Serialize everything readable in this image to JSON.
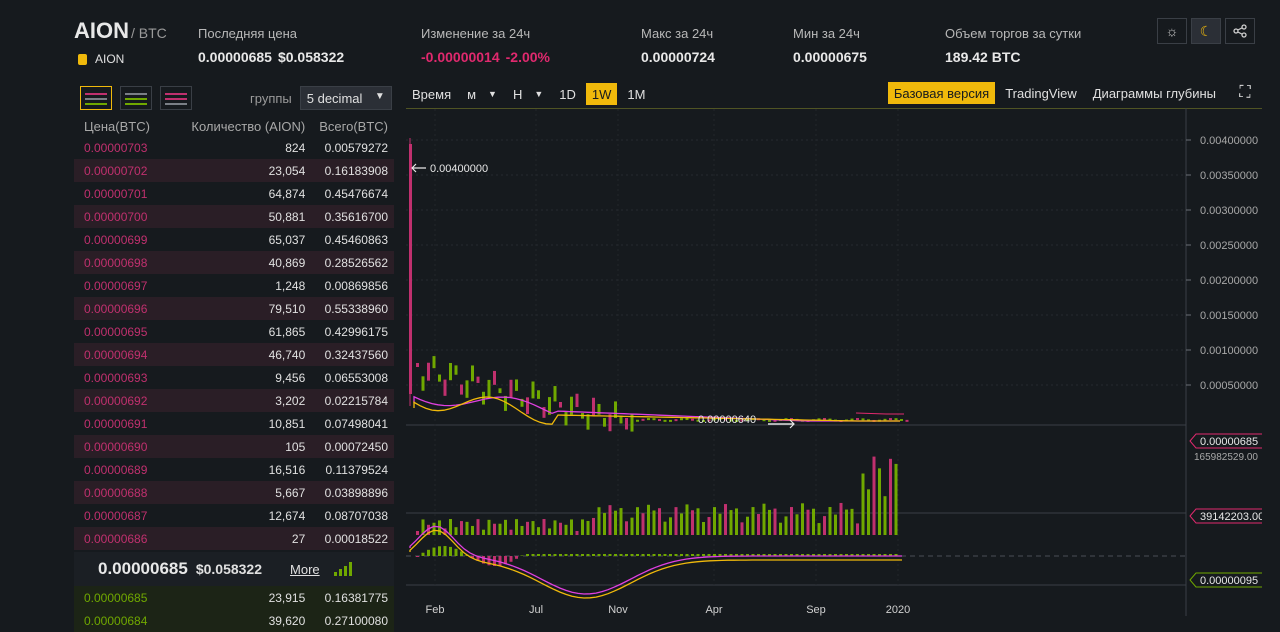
{
  "header": {
    "pair": "AION",
    "quote": "/ BTC",
    "sub_name": "AION",
    "stats": {
      "last_price": {
        "label": "Последняя цена",
        "value": "0.00000685",
        "usd": "$0.058322"
      },
      "change": {
        "label": "Изменение за 24ч",
        "value": "-0.00000014",
        "pct": "-2.00%"
      },
      "high": {
        "label": "Макс за 24ч",
        "value": "0.00000724"
      },
      "low": {
        "label": "Мин за 24ч",
        "value": "0.00000675"
      },
      "volume": {
        "label": "Объем торгов за сутки",
        "value": "189.42 BTC"
      }
    },
    "icons": [
      "sun-icon",
      "moon-icon",
      "share-icon"
    ]
  },
  "orderbook": {
    "group_label": "группы",
    "group_value": "5 decimal",
    "columns": [
      "Цена(BTC)",
      "Количество (AION)",
      "Всего(BTC)"
    ],
    "asks": [
      {
        "price": "0.00000703",
        "qty": "824",
        "total": "0.00579272"
      },
      {
        "price": "0.00000702",
        "qty": "23,054",
        "total": "0.16183908"
      },
      {
        "price": "0.00000701",
        "qty": "64,874",
        "total": "0.45476674"
      },
      {
        "price": "0.00000700",
        "qty": "50,881",
        "total": "0.35616700"
      },
      {
        "price": "0.00000699",
        "qty": "65,037",
        "total": "0.45460863"
      },
      {
        "price": "0.00000698",
        "qty": "40,869",
        "total": "0.28526562"
      },
      {
        "price": "0.00000697",
        "qty": "1,248",
        "total": "0.00869856"
      },
      {
        "price": "0.00000696",
        "qty": "79,510",
        "total": "0.55338960"
      },
      {
        "price": "0.00000695",
        "qty": "61,865",
        "total": "0.42996175"
      },
      {
        "price": "0.00000694",
        "qty": "46,740",
        "total": "0.32437560"
      },
      {
        "price": "0.00000693",
        "qty": "9,456",
        "total": "0.06553008"
      },
      {
        "price": "0.00000692",
        "qty": "3,202",
        "total": "0.02215784"
      },
      {
        "price": "0.00000691",
        "qty": "10,851",
        "total": "0.07498041"
      },
      {
        "price": "0.00000690",
        "qty": "105",
        "total": "0.00072450"
      },
      {
        "price": "0.00000689",
        "qty": "16,516",
        "total": "0.11379524"
      },
      {
        "price": "0.00000688",
        "qty": "5,667",
        "total": "0.03898896"
      },
      {
        "price": "0.00000687",
        "qty": "12,674",
        "total": "0.08707038"
      },
      {
        "price": "0.00000686",
        "qty": "27",
        "total": "0.00018522"
      }
    ],
    "last_price": "0.00000685",
    "last_usd": "$0.058322",
    "more": "More",
    "bids": [
      {
        "price": "0.00000685",
        "qty": "23,915",
        "total": "0.16381775"
      },
      {
        "price": "0.00000684",
        "qty": "39,620",
        "total": "0.27100080"
      }
    ]
  },
  "chart": {
    "toolbar": {
      "time_label": "Время",
      "minute": "м",
      "hour": "Н",
      "intervals": [
        "1D",
        "1W",
        "1M"
      ],
      "active_interval": "1W",
      "views": [
        "Базовая версия",
        "TradingView",
        "Диаграммы глубины"
      ],
      "active_view": "Базовая версия"
    },
    "price_axis": [
      "0.00400000",
      "0.00350000",
      "0.00300000",
      "0.00250000",
      "0.00200000",
      "0.00150000",
      "0.00100000",
      "0.00050000"
    ],
    "current_price_tag": "0.00000685",
    "high_annotation": "0.00400000",
    "low_annotation": "0.00000640",
    "volume_top": "165982529.00",
    "volume_tag": "39142203.00",
    "macd_tag": "0.00000095",
    "x_labels": [
      "Feb",
      "Jul",
      "Nov",
      "Apr",
      "Sep",
      "2020"
    ],
    "colors": {
      "up": "#70a800",
      "down": "#c0306e",
      "ma1": "#f0b90b",
      "ma2": "#e040e0"
    }
  }
}
